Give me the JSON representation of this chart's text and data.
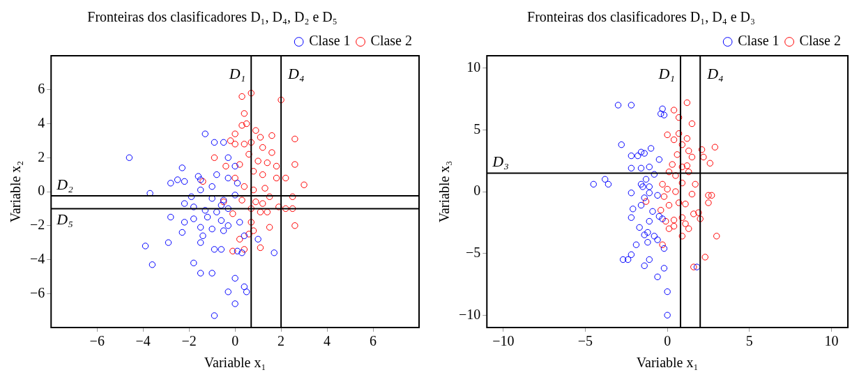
{
  "chart_data": [
    {
      "type": "scatter",
      "title": "Fronteiras dos clasificadores D₁, D₄, D₂ e D₅",
      "xlabel": "Variable x₁",
      "ylabel": "Variable x₂",
      "xlim": [
        -8,
        8
      ],
      "ylim": [
        -8,
        8
      ],
      "xticks": [
        -6,
        -4,
        -2,
        0,
        2,
        4,
        6
      ],
      "yticks": [
        -6,
        -4,
        -2,
        0,
        2,
        4,
        6
      ],
      "grid": false,
      "legend": "top right",
      "marker": "circle",
      "ref_lines": [
        {
          "axis": "x",
          "value": 0.7,
          "label": "D₁"
        },
        {
          "axis": "x",
          "value": 2,
          "label": "D₄"
        },
        {
          "axis": "y",
          "value": -0.25,
          "label": "D₂"
        },
        {
          "axis": "y",
          "value": -1,
          "label": "D₅"
        }
      ],
      "series": [
        {
          "name": "Clase 1",
          "color": "#0000ff",
          "x": [
            -4.6,
            -1.3,
            -0.9,
            -0.5,
            -0.3,
            0.0,
            -2.3,
            -2.5,
            -1.6,
            -1.5,
            -0.8,
            -0.3,
            0.1,
            -2.8,
            -2.2,
            -1.9,
            -3.7,
            -1.5,
            -1.0,
            -0.5,
            0.0,
            -2.2,
            -1.8,
            -1.3,
            -0.8,
            -0.3,
            -1.8,
            -1.2,
            -0.6,
            -2.8,
            -2.2,
            -1.5,
            -1.0,
            -0.3,
            0.2,
            -2.3,
            -1.4,
            -0.5,
            0.4,
            1.0,
            -2.9,
            -1.5,
            -0.9,
            -0.6,
            0.1,
            0.3,
            1.7,
            -3.9,
            -3.6,
            -1.8,
            -1.5,
            -1.0,
            0.0,
            0.4,
            0.5,
            -0.3,
            0.0,
            -0.9,
            -0.6,
            -1.0
          ],
          "values": [
            2.0,
            3.4,
            2.9,
            2.9,
            2.0,
            1.5,
            1.4,
            0.7,
            0.9,
            0.7,
            1.0,
            0.8,
            0.5,
            0.5,
            0.6,
            -0.3,
            -0.1,
            0.1,
            -0.4,
            -0.5,
            -0.2,
            -0.7,
            -0.9,
            -1.1,
            -1.2,
            -1.0,
            -1.6,
            -1.5,
            -1.7,
            -1.5,
            -1.8,
            -2.1,
            -2.2,
            -2.0,
            -1.8,
            -2.4,
            -2.6,
            -2.3,
            -2.6,
            -2.8,
            -3.0,
            -3.0,
            -3.4,
            -3.4,
            -3.5,
            -3.6,
            -3.6,
            -3.2,
            -4.3,
            -4.2,
            -4.8,
            -4.8,
            -5.1,
            -5.6,
            -5.9,
            -5.9,
            -6.6,
            -7.3,
            -0.8,
            0.3
          ]
        },
        {
          "name": "Clase 2",
          "color": "#ff0000",
          "x": [
            0.3,
            0.7,
            2.0,
            0.4,
            0.5,
            0.3,
            0.0,
            -0.2,
            0.9,
            1.1,
            1.6,
            0.7,
            1.2,
            1.6,
            2.6,
            0.0,
            0.4,
            -0.9,
            0.6,
            1.0,
            1.4,
            1.8,
            2.6,
            -0.4,
            0.2,
            0.8,
            1.2,
            1.8,
            2.2,
            3.0,
            -1.4,
            0.0,
            0.4,
            0.8,
            1.3,
            1.5,
            2.5,
            0.3,
            0.9,
            1.2,
            1.9,
            2.2,
            2.5,
            0.7,
            1.1,
            1.4,
            -0.1,
            -0.5,
            0.7,
            1.5,
            2.6,
            0.6,
            0.8,
            0.2,
            0.4,
            1.1,
            -0.1
          ],
          "values": [
            5.6,
            5.8,
            5.4,
            4.6,
            4.0,
            3.9,
            3.4,
            3.0,
            3.6,
            3.2,
            3.3,
            2.9,
            2.6,
            2.3,
            3.1,
            2.8,
            2.8,
            2.0,
            2.2,
            1.8,
            1.7,
            1.5,
            1.6,
            1.5,
            1.6,
            1.2,
            1.0,
            0.8,
            0.8,
            0.4,
            0.6,
            0.8,
            0.3,
            0.1,
            0.2,
            -0.3,
            -0.3,
            -0.5,
            -0.6,
            -0.7,
            -0.9,
            -1.0,
            -1.0,
            -1.0,
            -1.2,
            -1.2,
            -1.3,
            -0.6,
            -1.8,
            -2.1,
            -2.0,
            -2.5,
            -2.3,
            -2.8,
            -3.4,
            -3.3,
            -3.5
          ]
        }
      ]
    },
    {
      "type": "scatter",
      "title": "Fronteiras dos clasificadores D₁, D₄ e D₃",
      "xlabel": "Variable x₁",
      "ylabel": "Variable x₃",
      "xlim": [
        -11,
        11
      ],
      "ylim": [
        -11,
        11
      ],
      "xticks": [
        -10,
        -5,
        0,
        5,
        10
      ],
      "yticks": [
        -10,
        -5,
        0,
        5,
        10
      ],
      "grid": false,
      "legend": "top right",
      "marker": "circle",
      "ref_lines": [
        {
          "axis": "x",
          "value": 0.8,
          "label": "D₁"
        },
        {
          "axis": "x",
          "value": 2,
          "label": "D₄"
        },
        {
          "axis": "y",
          "value": 1.5,
          "label": "D₃"
        }
      ],
      "series": [
        {
          "name": "Clase 1",
          "color": "#0000ff",
          "x": [
            -3.0,
            -2.2,
            -0.4,
            -0.3,
            -0.2,
            -2.8,
            -1.4,
            -1.6,
            -1.8,
            -2.2,
            -1.0,
            -1.1,
            -1.6,
            -2.2,
            -0.8,
            -1.3,
            -1.6,
            -1.1,
            -3.8,
            -4.5,
            -3.6,
            -1.5,
            -1.1,
            -2.2,
            -1.4,
            -0.6,
            -1.6,
            -2.1,
            -0.9,
            -0.5,
            -1.1,
            -2.2,
            -0.3,
            -1.7,
            -1.4,
            -0.8,
            -1.2,
            -0.6,
            -1.2,
            -1.9,
            -0.2,
            -2.2,
            -2.4,
            -2.7,
            -1.1,
            -1.4,
            -0.2,
            -0.6,
            1.8,
            0.0,
            0.0,
            -0.5
          ],
          "values": [
            7.0,
            7.0,
            6.3,
            6.7,
            6.2,
            3.8,
            3.1,
            3.2,
            2.9,
            2.9,
            3.5,
            2.0,
            1.9,
            1.9,
            1.4,
            1.0,
            0.6,
            0.4,
            1.0,
            0.6,
            0.6,
            0.4,
            -0.1,
            -0.1,
            -0.5,
            -0.3,
            -1.1,
            -1.4,
            -1.6,
            -2.0,
            -2.4,
            -2.1,
            -2.2,
            -2.9,
            -3.5,
            -3.6,
            -3.3,
            -3.9,
            -4.1,
            -4.3,
            -4.6,
            -5.1,
            -5.5,
            -5.5,
            -5.5,
            -6.0,
            -6.2,
            -6.9,
            -6.1,
            -8.1,
            -10.0,
            2.6
          ]
        },
        {
          "name": "Clase 2",
          "color": "#ff0000",
          "x": [
            1.2,
            0.4,
            0.7,
            1.5,
            0.7,
            0.0,
            0.4,
            0.9,
            1.3,
            1.2,
            2.6,
            0.6,
            1.5,
            0.3,
            0.9,
            1.2,
            2.2,
            2.1,
            2.9,
            0.1,
            0.5,
            1.3,
            0.9,
            -0.3,
            0.0,
            0.5,
            1.7,
            1.5,
            2.5,
            2.7,
            2.5,
            -0.2,
            0.7,
            -1.3,
            -0.4,
            0.1,
            1.1,
            1.6,
            1.9,
            2.0,
            0.4,
            0.9,
            -0.1,
            1.1,
            1.3,
            3.0,
            0.1,
            0.9,
            -0.3,
            2.3,
            1.6,
            0.4
          ],
          "values": [
            7.2,
            6.6,
            6.0,
            5.5,
            4.7,
            4.6,
            4.2,
            3.8,
            3.3,
            4.3,
            2.3,
            3.0,
            2.8,
            2.2,
            2.0,
            2.1,
            2.8,
            3.4,
            3.6,
            1.6,
            1.3,
            1.6,
            0.7,
            0.6,
            0.2,
            0.0,
            0.6,
            -0.2,
            -0.3,
            -0.3,
            -0.9,
            -0.4,
            -0.9,
            -0.8,
            -1.5,
            -1.1,
            -1.0,
            -1.8,
            -1.7,
            -2.2,
            -2.3,
            -2.1,
            -2.4,
            -2.6,
            -3.0,
            -3.6,
            -3.0,
            -3.6,
            -4.3,
            -5.3,
            -6.1,
            -2.8
          ]
        }
      ]
    }
  ]
}
